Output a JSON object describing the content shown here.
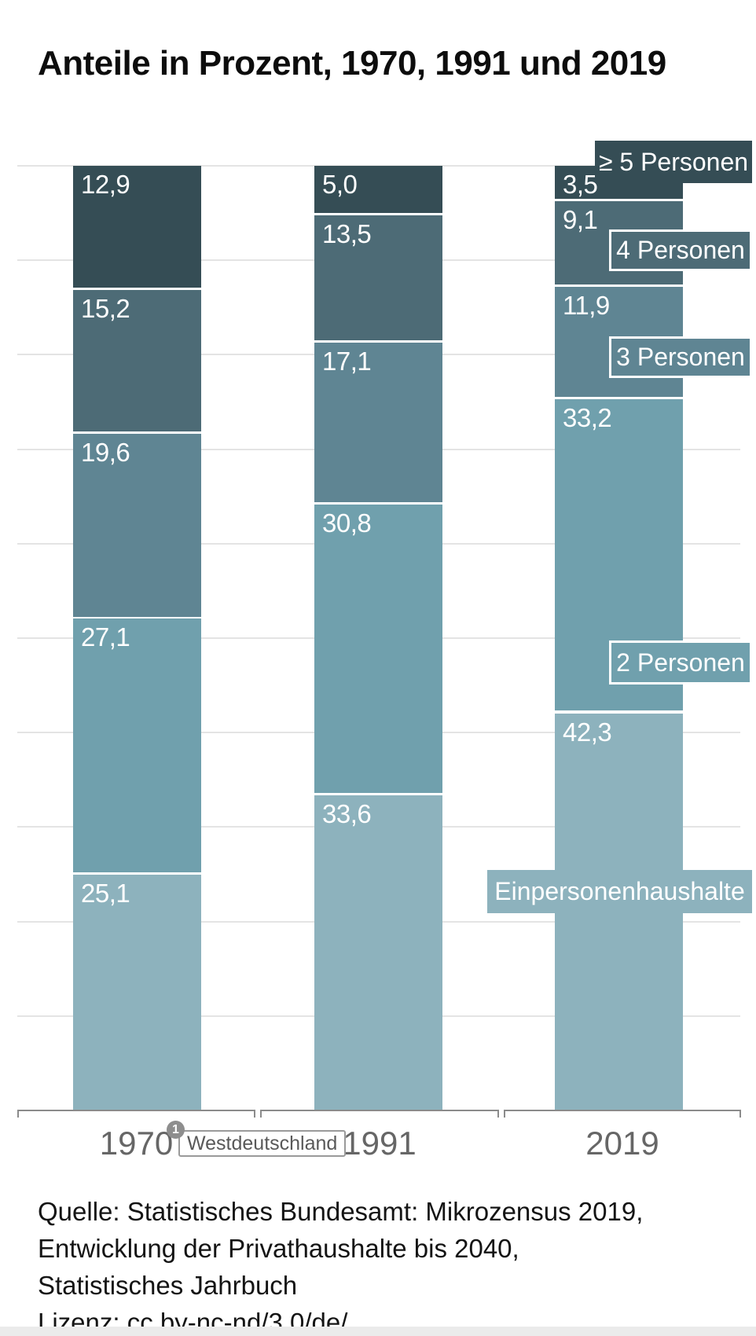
{
  "title": "Anteile in Prozent, 1970, 1991 und 2019",
  "chart_data": {
    "type": "bar",
    "stacked": true,
    "unit": "percent",
    "value_format": "decimal-comma",
    "grid": "horizontal, every 10 percent",
    "ylim": [
      0,
      100
    ],
    "categories": [
      "1970",
      "1991",
      "2019"
    ],
    "series": [
      {
        "name": "Einpersonenhaushalte",
        "color": "#8db2bd",
        "values": [
          25.1,
          33.6,
          42.3
        ]
      },
      {
        "name": "2 Personen",
        "color": "#70a0ad",
        "values": [
          27.1,
          30.8,
          33.2
        ]
      },
      {
        "name": "3 Personen",
        "color": "#5f8593",
        "values": [
          19.6,
          17.1,
          11.9
        ]
      },
      {
        "name": "4 Personen",
        "color": "#4d6b76",
        "values": [
          15.2,
          13.5,
          9.1
        ]
      },
      {
        "name": "≥ 5 Personen",
        "color": "#354d55",
        "values": [
          12.9,
          5.0,
          3.5
        ]
      }
    ],
    "legend_position": "right, labels attached next to 2019 bar"
  },
  "footnote": {
    "marker": "1",
    "label": "Westdeutschland"
  },
  "source": {
    "lines": [
      "Quelle: Statistisches Bundesamt: Mikrozensus 2019,",
      "Entwicklung der Privathaushalte bis 2040,",
      "Statistisches Jahrbuch"
    ],
    "license_prefix": "Lizenz: ",
    "license_link": "cc by-nc-nd/3.0/de/"
  }
}
